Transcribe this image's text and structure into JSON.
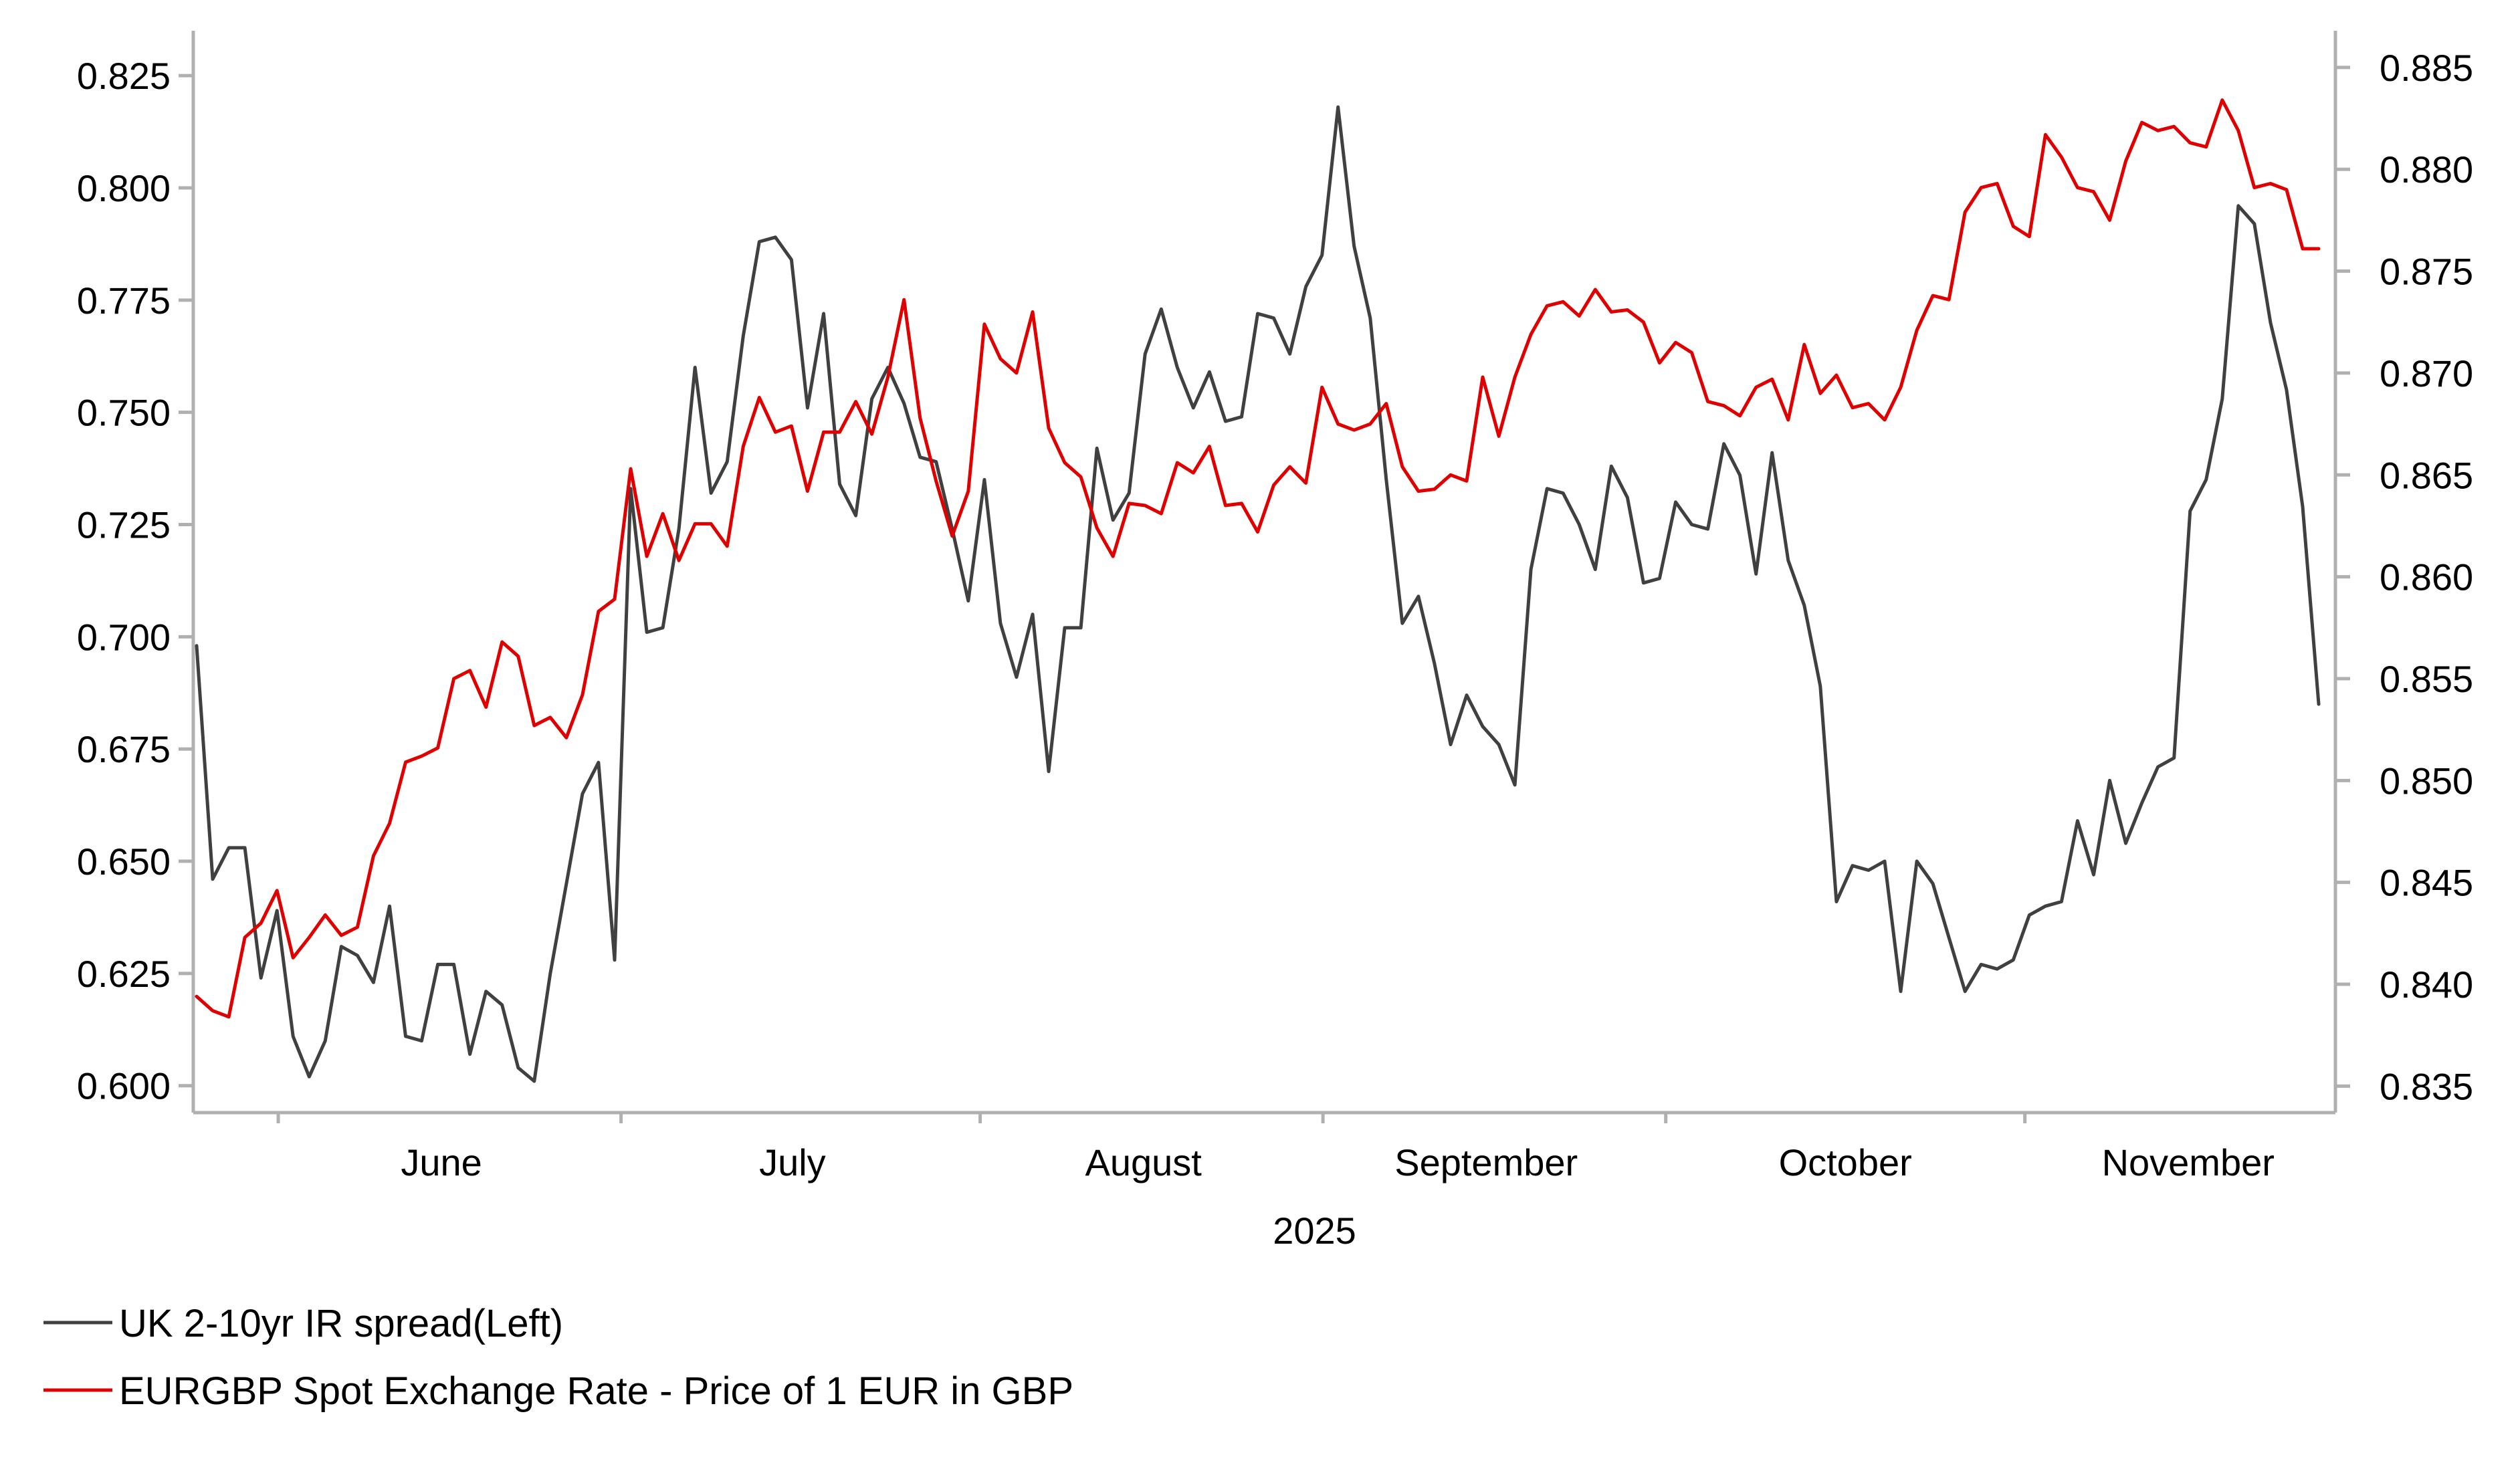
{
  "chart_data": {
    "type": "line",
    "title": "",
    "xlabel": "2025",
    "x_range": [
      0,
      130
    ],
    "month_labels": [
      {
        "label": "June",
        "at": 15
      },
      {
        "label": "July",
        "at": 36.5
      },
      {
        "label": "August",
        "at": 58
      },
      {
        "label": "September",
        "at": 79
      },
      {
        "label": "October",
        "at": 101
      },
      {
        "label": "November",
        "at": 122
      }
    ],
    "month_boundaries": [
      5,
      26,
      48,
      69,
      90,
      112
    ],
    "y_left": {
      "range": [
        0.594,
        0.835
      ],
      "ticks": [
        "0.600",
        "0.625",
        "0.650",
        "0.675",
        "0.700",
        "0.725",
        "0.750",
        "0.775",
        "0.800",
        "0.825"
      ]
    },
    "y_right": {
      "range": [
        0.8337,
        0.8868
      ],
      "ticks": [
        "0.835",
        "0.840",
        "0.845",
        "0.850",
        "0.855",
        "0.860",
        "0.865",
        "0.870",
        "0.875",
        "0.880",
        "0.885"
      ]
    },
    "series": [
      {
        "name": "UK 2-10yr IR spread(Left)",
        "axis": "left",
        "color": "#404040",
        "values": [
          0.698,
          0.646,
          0.653,
          0.653,
          0.624,
          0.639,
          0.611,
          0.602,
          0.61,
          0.631,
          0.629,
          0.623,
          0.64,
          0.611,
          0.61,
          0.627,
          0.627,
          0.607,
          0.621,
          0.618,
          0.604,
          0.601,
          0.625,
          0.645,
          0.665,
          0.672,
          0.628,
          0.733,
          0.701,
          0.702,
          0.724,
          0.76,
          0.732,
          0.739,
          0.767,
          0.788,
          0.789,
          0.784,
          0.751,
          0.772,
          0.734,
          0.727,
          0.753,
          0.76,
          0.752,
          0.74,
          0.739,
          0.724,
          0.708,
          0.735,
          0.703,
          0.691,
          0.705,
          0.67,
          0.702,
          0.702,
          0.742,
          0.726,
          0.732,
          0.763,
          0.773,
          0.76,
          0.751,
          0.759,
          0.748,
          0.749,
          0.772,
          0.771,
          0.763,
          0.778,
          0.785,
          0.818,
          0.787,
          0.771,
          0.735,
          0.703,
          0.709,
          0.694,
          0.676,
          0.687,
          0.68,
          0.676,
          0.667,
          0.715,
          0.733,
          0.732,
          0.725,
          0.715,
          0.738,
          0.731,
          0.712,
          0.713,
          0.73,
          0.725,
          0.724,
          0.743,
          0.736,
          0.714,
          0.741,
          0.717,
          0.707,
          0.689,
          0.641,
          0.649,
          0.648,
          0.65,
          0.621,
          0.65,
          0.645,
          0.633,
          0.621,
          0.627,
          0.626,
          0.628,
          0.638,
          0.64,
          0.641,
          0.659,
          0.647,
          0.668,
          0.654,
          0.663,
          0.671,
          0.673,
          0.728,
          0.735,
          0.753,
          0.796,
          0.792,
          0.77,
          0.755,
          0.729,
          0.685
        ]
      },
      {
        "name": "EURGBP Spot Exchange Rate - Price of 1 EUR in GBP",
        "axis": "right",
        "color": "#e00000",
        "values": [
          0.8394,
          0.8387,
          0.8384,
          0.8423,
          0.843,
          0.8446,
          0.8413,
          0.8423,
          0.8434,
          0.8424,
          0.8428,
          0.8463,
          0.8479,
          0.8509,
          0.8512,
          0.8516,
          0.855,
          0.8554,
          0.8536,
          0.8568,
          0.8561,
          0.8527,
          0.8531,
          0.8521,
          0.8542,
          0.8583,
          0.8589,
          0.8653,
          0.861,
          0.8631,
          0.8608,
          0.8626,
          0.8626,
          0.8615,
          0.8664,
          0.8688,
          0.8671,
          0.8674,
          0.8642,
          0.8671,
          0.8671,
          0.8686,
          0.867,
          0.8698,
          0.8736,
          0.8678,
          0.8647,
          0.862,
          0.8642,
          0.8724,
          0.8707,
          0.87,
          0.873,
          0.8673,
          0.8656,
          0.8649,
          0.8624,
          0.861,
          0.8636,
          0.8635,
          0.8631,
          0.8656,
          0.8651,
          0.8664,
          0.8635,
          0.8636,
          0.8622,
          0.8645,
          0.8654,
          0.8646,
          0.8693,
          0.8675,
          0.8672,
          0.8675,
          0.8685,
          0.8654,
          0.8642,
          0.8643,
          0.865,
          0.8647,
          0.8698,
          0.8669,
          0.8698,
          0.8719,
          0.8733,
          0.8735,
          0.8728,
          0.8741,
          0.873,
          0.8731,
          0.8725,
          0.8705,
          0.8715,
          0.871,
          0.8686,
          0.8684,
          0.8679,
          0.8693,
          0.8697,
          0.8677,
          0.8714,
          0.869,
          0.8699,
          0.8683,
          0.8685,
          0.8677,
          0.8693,
          0.8721,
          0.8738,
          0.8736,
          0.8779,
          0.8791,
          0.8793,
          0.8772,
          0.8767,
          0.8817,
          0.8806,
          0.8791,
          0.8789,
          0.8775,
          0.8804,
          0.8823,
          0.8819,
          0.8821,
          0.8813,
          0.8811,
          0.8834,
          0.8819,
          0.8791,
          0.8793,
          0.879,
          0.8761,
          0.8761
        ]
      }
    ]
  }
}
